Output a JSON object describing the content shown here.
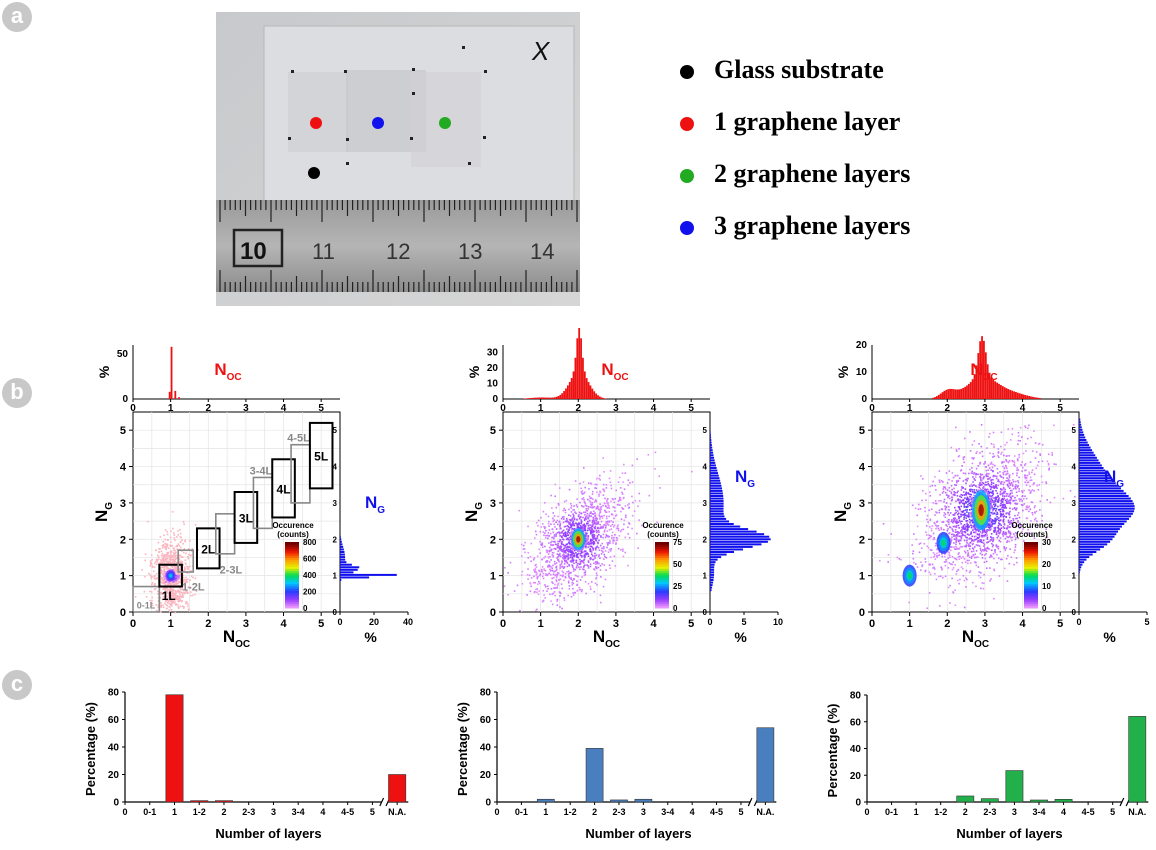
{
  "panels": {
    "a": "a",
    "b": "b",
    "c": "c"
  },
  "photo": {
    "ruler_labels": [
      "10",
      "11",
      "12",
      "13",
      "14"
    ],
    "mark": "X"
  },
  "legend": [
    {
      "label": "Glass substrate",
      "color": "#000000"
    },
    {
      "label": "1 graphene layer",
      "color": "#ee1111"
    },
    {
      "label": "2 graphene layers",
      "color": "#22aa22"
    },
    {
      "label": "3 graphene layers",
      "color": "#1111ee"
    }
  ],
  "chart_data": [
    {
      "type": "heatmap",
      "panel": "b",
      "xlabel": "N_OC",
      "ylabel": "N_G",
      "xlim": [
        0,
        5.5
      ],
      "ylim": [
        0,
        5.5
      ],
      "ticks": [
        0,
        1,
        2,
        3,
        4,
        5
      ],
      "marginal_top": {
        "ylabel": "%",
        "ylim": [
          0,
          60
        ],
        "ticks": [
          0,
          50
        ],
        "label": "N_OC",
        "color": "#ee1111"
      },
      "marginal_right": {
        "xlabel": "%",
        "xlim": [
          0,
          40
        ],
        "ticks": [
          0,
          20,
          40
        ],
        "label": "N_G",
        "color": "#1111ee"
      },
      "colorbar": {
        "title": "Occurence",
        "subtitle": "(counts)",
        "ticks": [
          0,
          200,
          400,
          600,
          800
        ]
      },
      "clusters": [
        {
          "x": 1.0,
          "y": 1.0
        }
      ],
      "regions": [
        {
          "label": "0-1L",
          "x": [
            0.0,
            0.7
          ],
          "y": [
            0.0,
            0.7
          ],
          "style": "grey"
        },
        {
          "label": "1L",
          "x": [
            0.7,
            1.3
          ],
          "y": [
            0.7,
            1.3
          ],
          "style": "black"
        },
        {
          "label": "1-2L",
          "x": [
            1.2,
            1.6
          ],
          "y": [
            1.1,
            1.7
          ],
          "style": "grey"
        },
        {
          "label": "2L",
          "x": [
            1.7,
            2.3
          ],
          "y": [
            1.2,
            2.3
          ],
          "style": "black"
        },
        {
          "label": "2-3L",
          "x": [
            2.2,
            2.7
          ],
          "y": [
            1.6,
            2.7
          ],
          "style": "grey"
        },
        {
          "label": "3L",
          "x": [
            2.7,
            3.3
          ],
          "y": [
            1.9,
            3.3
          ],
          "style": "black"
        },
        {
          "label": "3-4L",
          "x": [
            3.2,
            3.7
          ],
          "y": [
            2.3,
            3.7
          ],
          "style": "grey"
        },
        {
          "label": "4L",
          "x": [
            3.7,
            4.3
          ],
          "y": [
            2.6,
            4.2
          ],
          "style": "black"
        },
        {
          "label": "4-5L",
          "x": [
            4.2,
            4.7
          ],
          "y": [
            3.0,
            4.6
          ],
          "style": "grey"
        },
        {
          "label": "5L",
          "x": [
            4.7,
            5.3
          ],
          "y": [
            3.4,
            5.2
          ],
          "style": "black"
        }
      ]
    },
    {
      "type": "heatmap",
      "panel": "b",
      "xlabel": "N_OC",
      "ylabel": "N_G",
      "xlim": [
        0,
        5.5
      ],
      "ylim": [
        0,
        5.5
      ],
      "ticks": [
        0,
        1,
        2,
        3,
        4,
        5
      ],
      "marginal_top": {
        "ylabel": "%",
        "ylim": [
          0,
          35
        ],
        "ticks": [
          0,
          10,
          20,
          30
        ],
        "label": "N_OC",
        "color": "#ee1111"
      },
      "marginal_right": {
        "xlabel": "%",
        "xlim": [
          0,
          10
        ],
        "ticks": [
          0,
          5,
          10
        ],
        "label": "N_G",
        "color": "#1111ee"
      },
      "colorbar": {
        "title": "Occurence",
        "subtitle": "(counts)",
        "ticks": [
          0,
          25,
          50,
          75
        ]
      },
      "clusters": [
        {
          "x": 2.0,
          "y": 2.0
        }
      ]
    },
    {
      "type": "heatmap",
      "panel": "b",
      "xlabel": "N_OC",
      "ylabel": "N_G",
      "xlim": [
        0,
        5.5
      ],
      "ylim": [
        0,
        5.5
      ],
      "ticks": [
        0,
        1,
        2,
        3,
        4,
        5
      ],
      "marginal_top": {
        "ylabel": "%",
        "ylim": [
          0,
          20
        ],
        "ticks": [
          0,
          10,
          20
        ],
        "label": "N_OC",
        "color": "#ee1111"
      },
      "marginal_right": {
        "xlabel": "%",
        "xlim": [
          0,
          5
        ],
        "ticks": [
          0,
          5
        ],
        "label": "N_G",
        "color": "#1111ee"
      },
      "colorbar": {
        "title": "Occurence",
        "subtitle": "(counts)",
        "ticks": [
          0,
          10,
          20,
          30
        ]
      },
      "clusters": [
        {
          "x": 2.9,
          "y": 2.8
        },
        {
          "x": 1.9,
          "y": 1.9
        },
        {
          "x": 1.0,
          "y": 1.0
        }
      ]
    },
    {
      "type": "bar",
      "panel": "c",
      "categories": [
        "0",
        "0-1",
        "1",
        "1-2",
        "2",
        "2-3",
        "3",
        "3-4",
        "4",
        "4-5",
        "5",
        "N.A."
      ],
      "values": [
        0,
        0,
        78,
        1,
        1,
        0,
        0,
        0,
        0,
        0,
        0,
        20
      ],
      "ylabel": "Percentage (%)",
      "xlabel": "Number of layers",
      "ylim": [
        0,
        80
      ],
      "yticks": [
        0,
        20,
        40,
        60,
        80
      ],
      "color": "#ee1111"
    },
    {
      "type": "bar",
      "panel": "c",
      "categories": [
        "0",
        "0-1",
        "1",
        "1-2",
        "2",
        "2-3",
        "3",
        "3-4",
        "4",
        "4-5",
        "5",
        "N.A."
      ],
      "values": [
        0,
        0,
        2,
        0,
        39,
        1.5,
        2,
        0,
        0,
        0,
        0,
        54
      ],
      "ylabel": "Percentage (%)",
      "xlabel": "Number of layers",
      "ylim": [
        0,
        80
      ],
      "yticks": [
        0,
        20,
        40,
        60,
        80
      ],
      "color": "#4a7fbf"
    },
    {
      "type": "bar",
      "panel": "c",
      "categories": [
        "0",
        "0-1",
        "1",
        "1-2",
        "2",
        "2-3",
        "3",
        "3-4",
        "4",
        "4-5",
        "5",
        "N.A."
      ],
      "values": [
        0,
        0,
        0,
        0,
        4.5,
        2.5,
        23.5,
        1.5,
        2,
        0,
        0,
        64
      ],
      "ylabel": "Percentage (%)",
      "xlabel": "Number of layers",
      "ylim": [
        0,
        80
      ],
      "yticks": [
        0,
        20,
        40,
        60,
        80
      ],
      "color": "#22b04a"
    }
  ]
}
